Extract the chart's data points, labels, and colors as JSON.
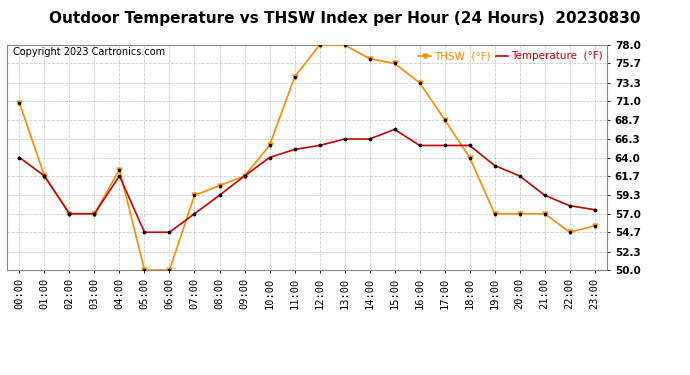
{
  "title": "Outdoor Temperature vs THSW Index per Hour (24 Hours)  20230830",
  "copyright": "Copyright 2023 Cartronics.com",
  "hours": [
    "00:00",
    "01:00",
    "02:00",
    "03:00",
    "04:00",
    "05:00",
    "06:00",
    "07:00",
    "08:00",
    "09:00",
    "10:00",
    "11:00",
    "12:00",
    "13:00",
    "14:00",
    "15:00",
    "16:00",
    "17:00",
    "18:00",
    "19:00",
    "20:00",
    "21:00",
    "22:00",
    "23:00"
  ],
  "temperature": [
    64.0,
    61.7,
    57.0,
    57.0,
    61.7,
    54.7,
    54.7,
    57.0,
    59.3,
    61.7,
    64.0,
    65.0,
    65.5,
    66.3,
    66.3,
    67.5,
    65.5,
    65.5,
    65.5,
    63.0,
    61.7,
    59.3,
    58.0,
    57.5
  ],
  "thsw": [
    70.8,
    61.7,
    57.0,
    57.0,
    62.5,
    50.0,
    50.0,
    59.3,
    60.5,
    61.7,
    65.5,
    74.0,
    78.0,
    78.0,
    76.3,
    75.7,
    73.3,
    68.7,
    64.0,
    57.0,
    57.0,
    57.0,
    54.7,
    55.5
  ],
  "thsw_color": "#FF8C00",
  "temp_color": "#CC0000",
  "marker_color": "#000000",
  "bg_color": "#FFFFFF",
  "grid_color": "#CCCCCC",
  "ylim_min": 50.0,
  "ylim_max": 78.0,
  "yticks": [
    50.0,
    52.3,
    54.7,
    57.0,
    59.3,
    61.7,
    64.0,
    66.3,
    68.7,
    71.0,
    73.3,
    75.7,
    78.0
  ],
  "legend_thsw": "THSW  (°F)",
  "legend_temp": "Temperature  (°F)",
  "title_fontsize": 11,
  "copyright_fontsize": 7,
  "legend_fontsize": 7.5,
  "tick_fontsize": 7.5
}
